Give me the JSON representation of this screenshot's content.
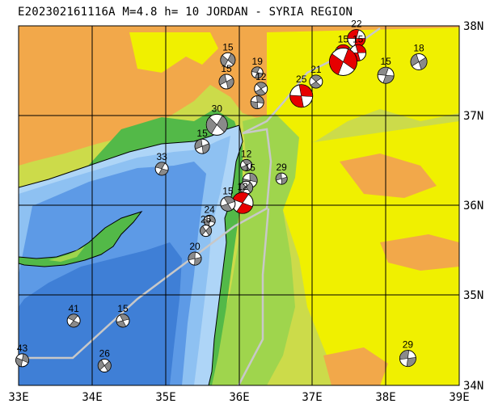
{
  "title": "E202302161116A M=4.8 h= 10 JORDAN - SYRIA REGION",
  "x_axis_labels": [
    "33E",
    "34E",
    "35E",
    "36E",
    "37E",
    "38E",
    "39E"
  ],
  "y_axis_labels": [
    "38N",
    "37N",
    "36N",
    "35N",
    "34N"
  ],
  "colors": {
    "deep_sea": "#3f7fd6",
    "mid_sea": "#5d9ae6",
    "shallow_sea": "#8ec1f2",
    "coast_sea": "#aed5f7",
    "lowland": "#53b948",
    "low_hills": "#9fd54d",
    "plain": "#ccdb4a",
    "plateau": "#f0f000",
    "highland": "#f2a84a",
    "mountain": "#e8a070",
    "beachball_red": "#e60000",
    "beachball_gray": "#8a8a8a",
    "border_line": "#c8c8c8"
  },
  "mechanisms": [
    {
      "label": "22",
      "lon": 37.6,
      "lat": 37.86,
      "color": "red",
      "size": 11
    },
    {
      "label": "15",
      "lon": 37.42,
      "lat": 37.7,
      "color": "red",
      "size": 10
    },
    {
      "label": "15",
      "lon": 37.62,
      "lat": 37.7,
      "color": "red",
      "size": 10
    },
    {
      "label": "",
      "lon": 37.42,
      "lat": 37.6,
      "color": "red",
      "size": 17
    },
    {
      "label": "18",
      "lon": 38.45,
      "lat": 37.6,
      "color": "gray",
      "size": 10
    },
    {
      "label": "15",
      "lon": 38.0,
      "lat": 37.45,
      "color": "gray",
      "size": 10
    },
    {
      "label": "21",
      "lon": 37.05,
      "lat": 37.38,
      "color": "gray",
      "size": 8
    },
    {
      "label": "25",
      "lon": 36.85,
      "lat": 37.22,
      "color": "red",
      "size": 14
    },
    {
      "label": "15",
      "lon": 35.85,
      "lat": 37.62,
      "color": "gray",
      "size": 9
    },
    {
      "label": "15",
      "lon": 35.83,
      "lat": 37.38,
      "color": "gray",
      "size": 9
    },
    {
      "label": "19",
      "lon": 36.25,
      "lat": 37.48,
      "color": "gray",
      "size": 7
    },
    {
      "label": "12",
      "lon": 36.3,
      "lat": 37.3,
      "color": "gray",
      "size": 8
    },
    {
      "label": "",
      "lon": 36.25,
      "lat": 37.15,
      "color": "gray",
      "size": 8
    },
    {
      "label": "30",
      "lon": 35.7,
      "lat": 36.9,
      "color": "gray",
      "size": 13
    },
    {
      "label": "15",
      "lon": 35.5,
      "lat": 36.66,
      "color": "gray",
      "size": 9
    },
    {
      "label": "33",
      "lon": 34.95,
      "lat": 36.41,
      "color": "gray",
      "size": 8
    },
    {
      "label": "12",
      "lon": 36.1,
      "lat": 36.45,
      "color": "gray",
      "size": 7
    },
    {
      "label": "15",
      "lon": 36.15,
      "lat": 36.28,
      "color": "gray",
      "size": 9
    },
    {
      "label": "",
      "lon": 36.1,
      "lat": 36.2,
      "color": "gray",
      "size": 8
    },
    {
      "label": "29",
      "lon": 36.58,
      "lat": 36.3,
      "color": "gray",
      "size": 7
    },
    {
      "label": "12",
      "lon": 36.05,
      "lat": 36.03,
      "color": "red",
      "size": 13
    },
    {
      "label": "15",
      "lon": 35.85,
      "lat": 36.02,
      "color": "gray",
      "size": 9
    },
    {
      "label": "24",
      "lon": 35.6,
      "lat": 35.83,
      "color": "gray",
      "size": 7
    },
    {
      "label": "25",
      "lon": 35.55,
      "lat": 35.72,
      "color": "gray",
      "size": 7
    },
    {
      "label": "20",
      "lon": 35.4,
      "lat": 35.41,
      "color": "gray",
      "size": 8
    },
    {
      "label": "41",
      "lon": 33.75,
      "lat": 34.72,
      "color": "gray",
      "size": 8
    },
    {
      "label": "15",
      "lon": 34.42,
      "lat": 34.72,
      "color": "gray",
      "size": 8
    },
    {
      "label": "43",
      "lon": 33.05,
      "lat": 34.28,
      "color": "gray",
      "size": 8
    },
    {
      "label": "26",
      "lon": 34.17,
      "lat": 34.22,
      "color": "gray",
      "size": 8
    },
    {
      "label": "29",
      "lon": 38.3,
      "lat": 34.3,
      "color": "gray",
      "size": 10
    }
  ]
}
